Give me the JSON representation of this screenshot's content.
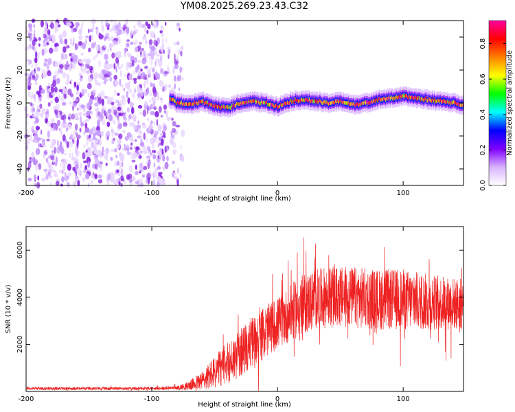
{
  "title": "YM08.2025.269.23.43.C32",
  "chart_data": [
    {
      "type": "heatmap",
      "xlabel": "Height of straight line (km)",
      "ylabel": "Frequency (Hz)",
      "xlim": [
        -200,
        148
      ],
      "ylim": [
        -50,
        50
      ],
      "xticks": [
        -200,
        -100,
        0,
        100
      ],
      "yticks": [
        -40,
        -20,
        0,
        20,
        40
      ],
      "colorbar": {
        "label": "Normalized spectral amplitude",
        "range": [
          0.0,
          0.93
        ],
        "ticks": [
          0.0,
          0.2,
          0.4,
          0.6,
          0.8
        ],
        "colors": [
          "#ffffff",
          "#d9b3ff",
          "#8000ff",
          "#0000ff",
          "#00ffff",
          "#00ff00",
          "#ffff00",
          "#ff8000",
          "#ff0000",
          "#ff00a0"
        ]
      },
      "noise_region_x": [
        -200,
        -75
      ],
      "ridge": {
        "x_start": -86,
        "x": [
          -86,
          -80,
          -70,
          -60,
          -50,
          -40,
          -30,
          -20,
          -10,
          0,
          10,
          20,
          30,
          40,
          50,
          60,
          70,
          80,
          90,
          100,
          110,
          120,
          130,
          140,
          148
        ],
        "freq": [
          3,
          0,
          -1,
          1,
          -2,
          -3,
          0,
          1,
          0,
          -2,
          1,
          2,
          1,
          0,
          1,
          -1,
          0,
          2,
          3,
          4,
          3,
          2,
          1,
          0,
          -1
        ]
      }
    },
    {
      "type": "line",
      "xlabel": "Height of straight line (km)",
      "ylabel": "SNR (10 * v/v)",
      "xlim": [
        -200,
        148
      ],
      "ylim": [
        0,
        7000
      ],
      "xticks": [
        -200,
        -100,
        0,
        100
      ],
      "yticks": [
        2000,
        4000,
        6000
      ],
      "color": "#ee2222",
      "envelope": {
        "x": [
          -200,
          -150,
          -100,
          -80,
          -70,
          -60,
          -50,
          -40,
          -30,
          -20,
          -10,
          0,
          10,
          20,
          30,
          40,
          60,
          80,
          100,
          120,
          148
        ],
        "mean": [
          130,
          120,
          130,
          150,
          250,
          450,
          800,
          1200,
          1600,
          2100,
          2500,
          2900,
          3300,
          3700,
          3900,
          4000,
          4000,
          3900,
          3900,
          3800,
          3700
        ],
        "spread": [
          60,
          60,
          60,
          80,
          200,
          400,
          700,
          900,
          1000,
          1100,
          1100,
          1100,
          1200,
          1300,
          1300,
          1300,
          1300,
          1300,
          1300,
          1200,
          1100
        ]
      }
    }
  ]
}
